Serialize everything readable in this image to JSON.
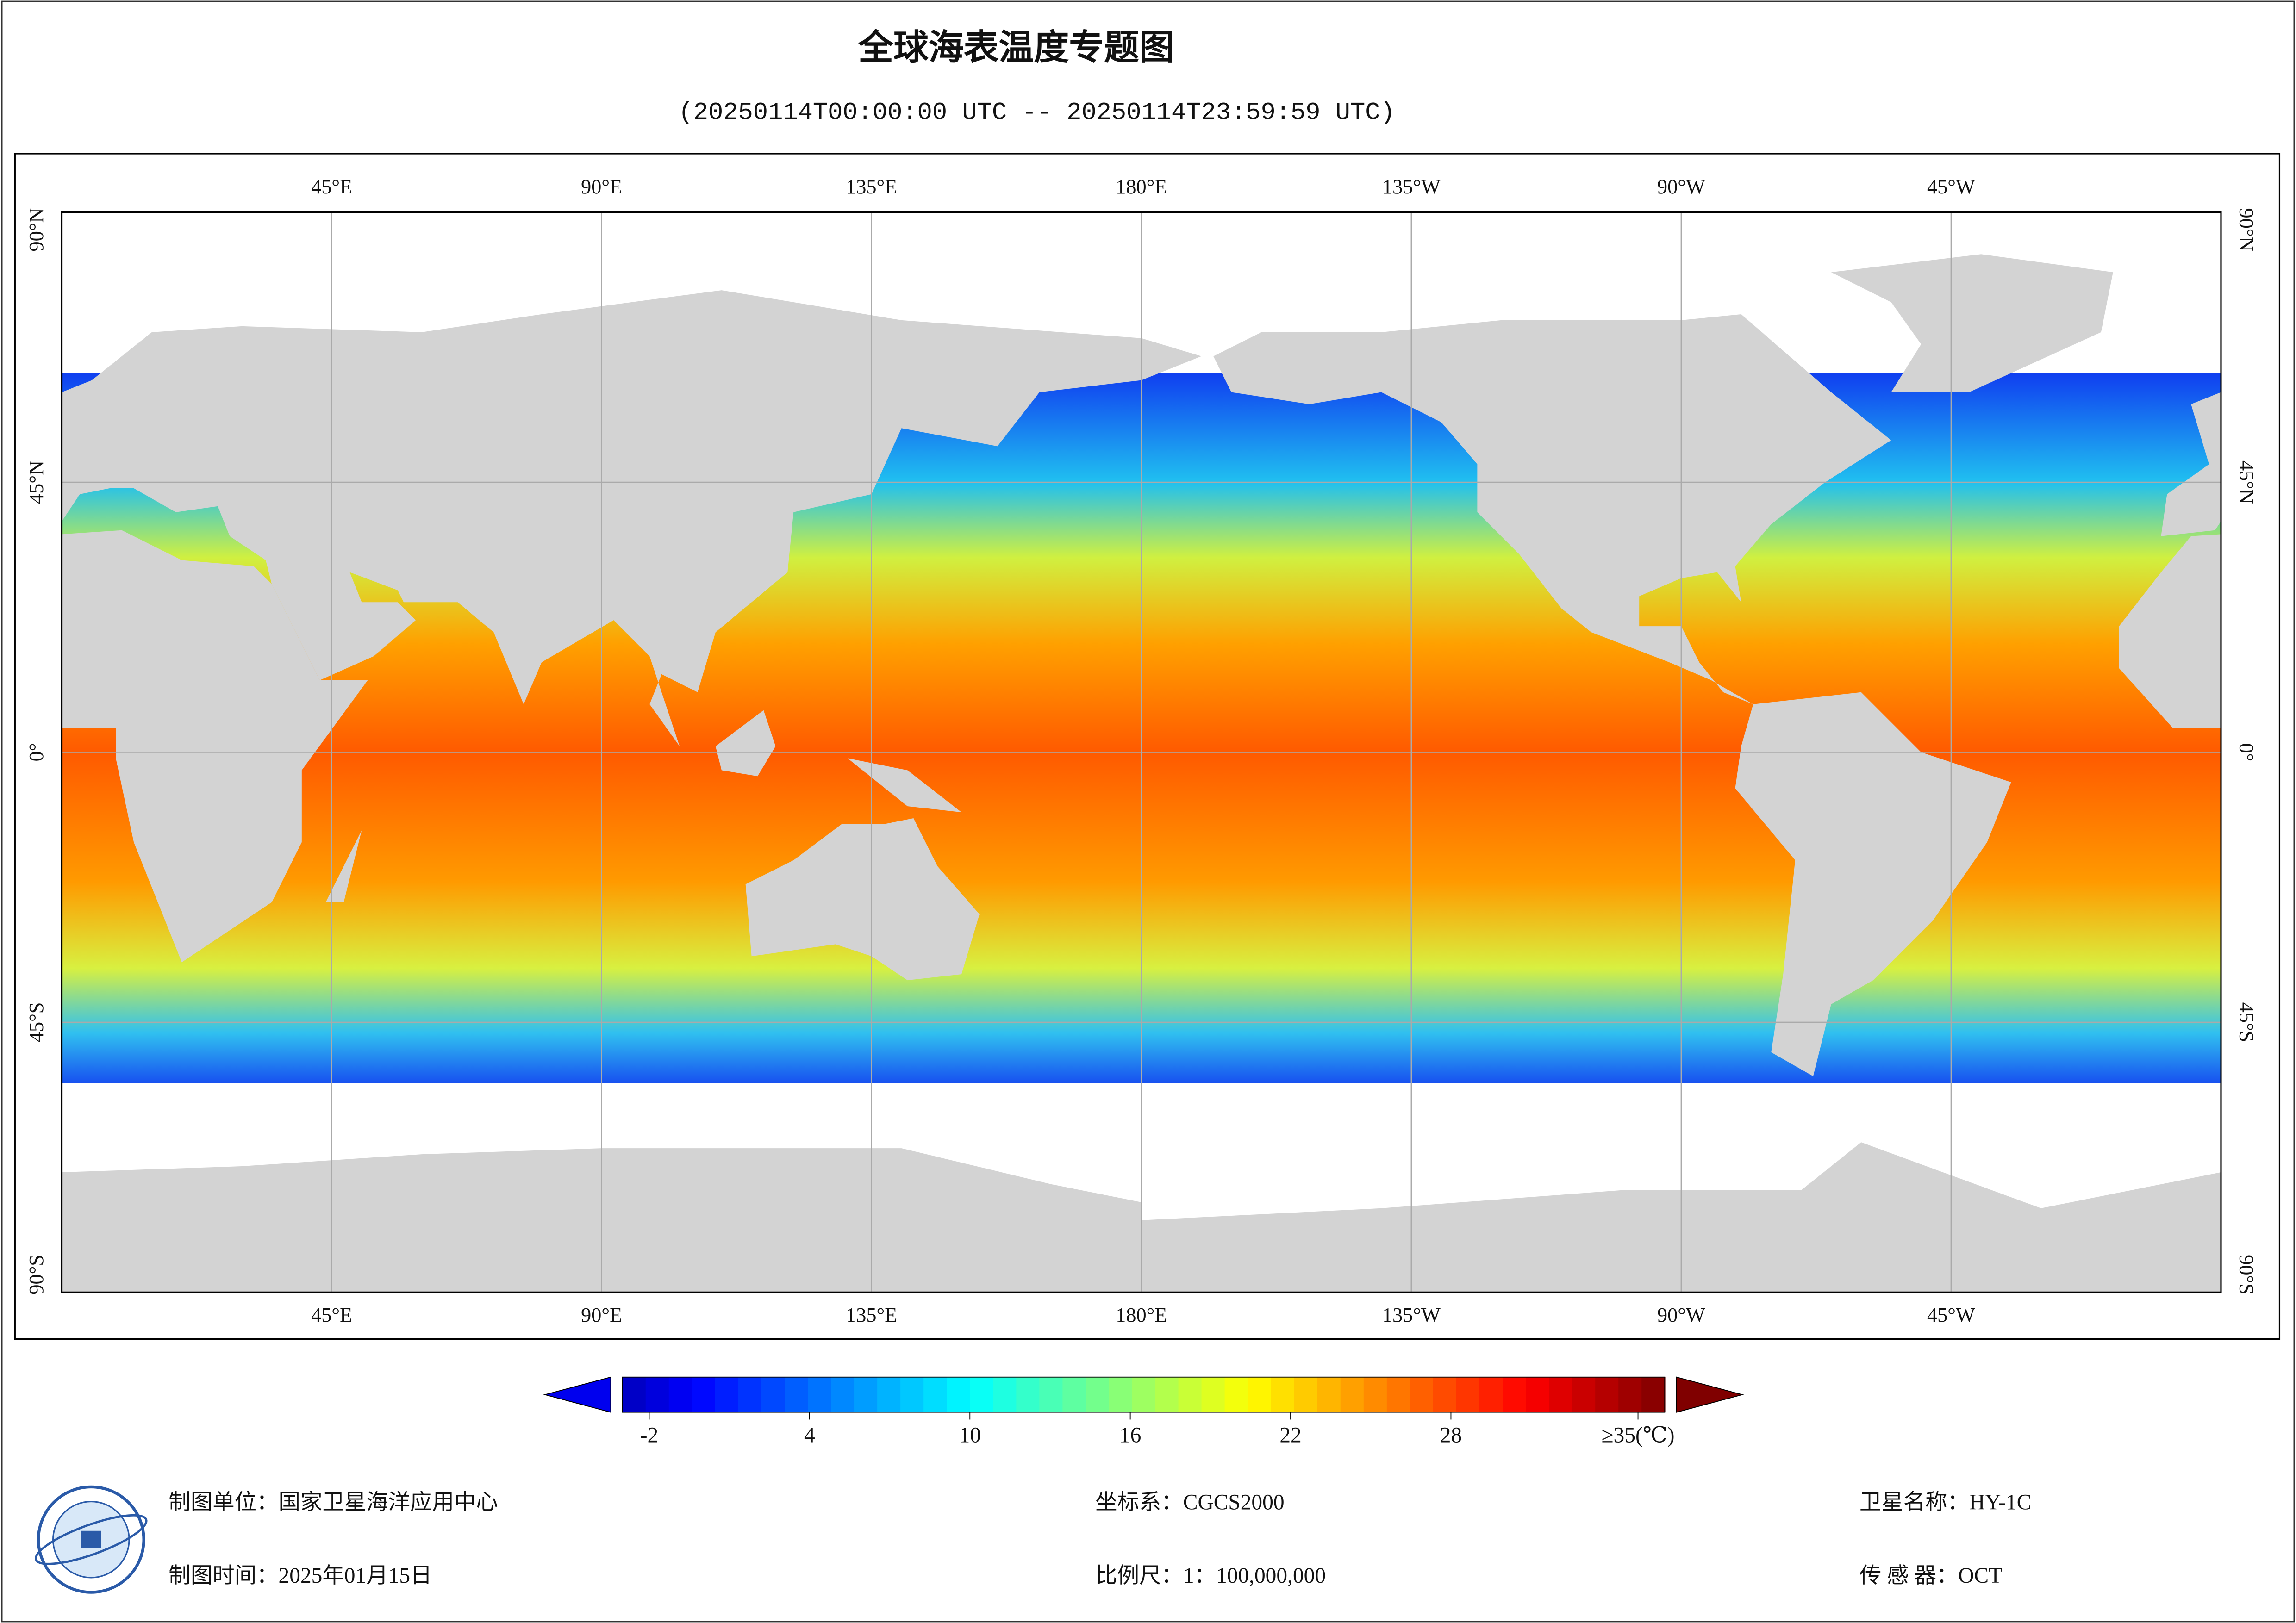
{
  "title": "全球海表温度专题图",
  "subtitle": "(20250114T00:00:00 UTC -- 20250114T23:59:59 UTC)",
  "map": {
    "xlim": [
      0,
      360
    ],
    "ylim": [
      -90,
      90
    ],
    "lon_ticks": [
      {
        "value": 45,
        "label": "45°E"
      },
      {
        "value": 90,
        "label": "90°E"
      },
      {
        "value": 135,
        "label": "135°E"
      },
      {
        "value": 180,
        "label": "180°E"
      },
      {
        "value": 225,
        "label": "135°W"
      },
      {
        "value": 270,
        "label": "90°W"
      },
      {
        "value": 315,
        "label": "45°W"
      }
    ],
    "lat_ticks": [
      {
        "value": 90,
        "label": "90°N"
      },
      {
        "value": 45,
        "label": "45°N"
      },
      {
        "value": 0,
        "label": "0°"
      },
      {
        "value": -45,
        "label": "45°S"
      },
      {
        "value": -90,
        "label": "90°S"
      }
    ]
  },
  "colorbar": {
    "lim": [
      -3,
      36
    ],
    "ticks": [
      -2,
      4,
      10,
      16,
      22,
      28,
      {
        "value": 35,
        "label": "≥35(℃)"
      }
    ]
  },
  "footer": {
    "producer": "制图单位：国家卫星海洋应用中心",
    "date": "制图时间：2025年01月15日",
    "crs": "坐标系：CGCS2000",
    "scale": "比例尺：1：100,000,000",
    "satellite": "卫星名称：HY-1C",
    "sensor": "传 感 器：OCT"
  }
}
